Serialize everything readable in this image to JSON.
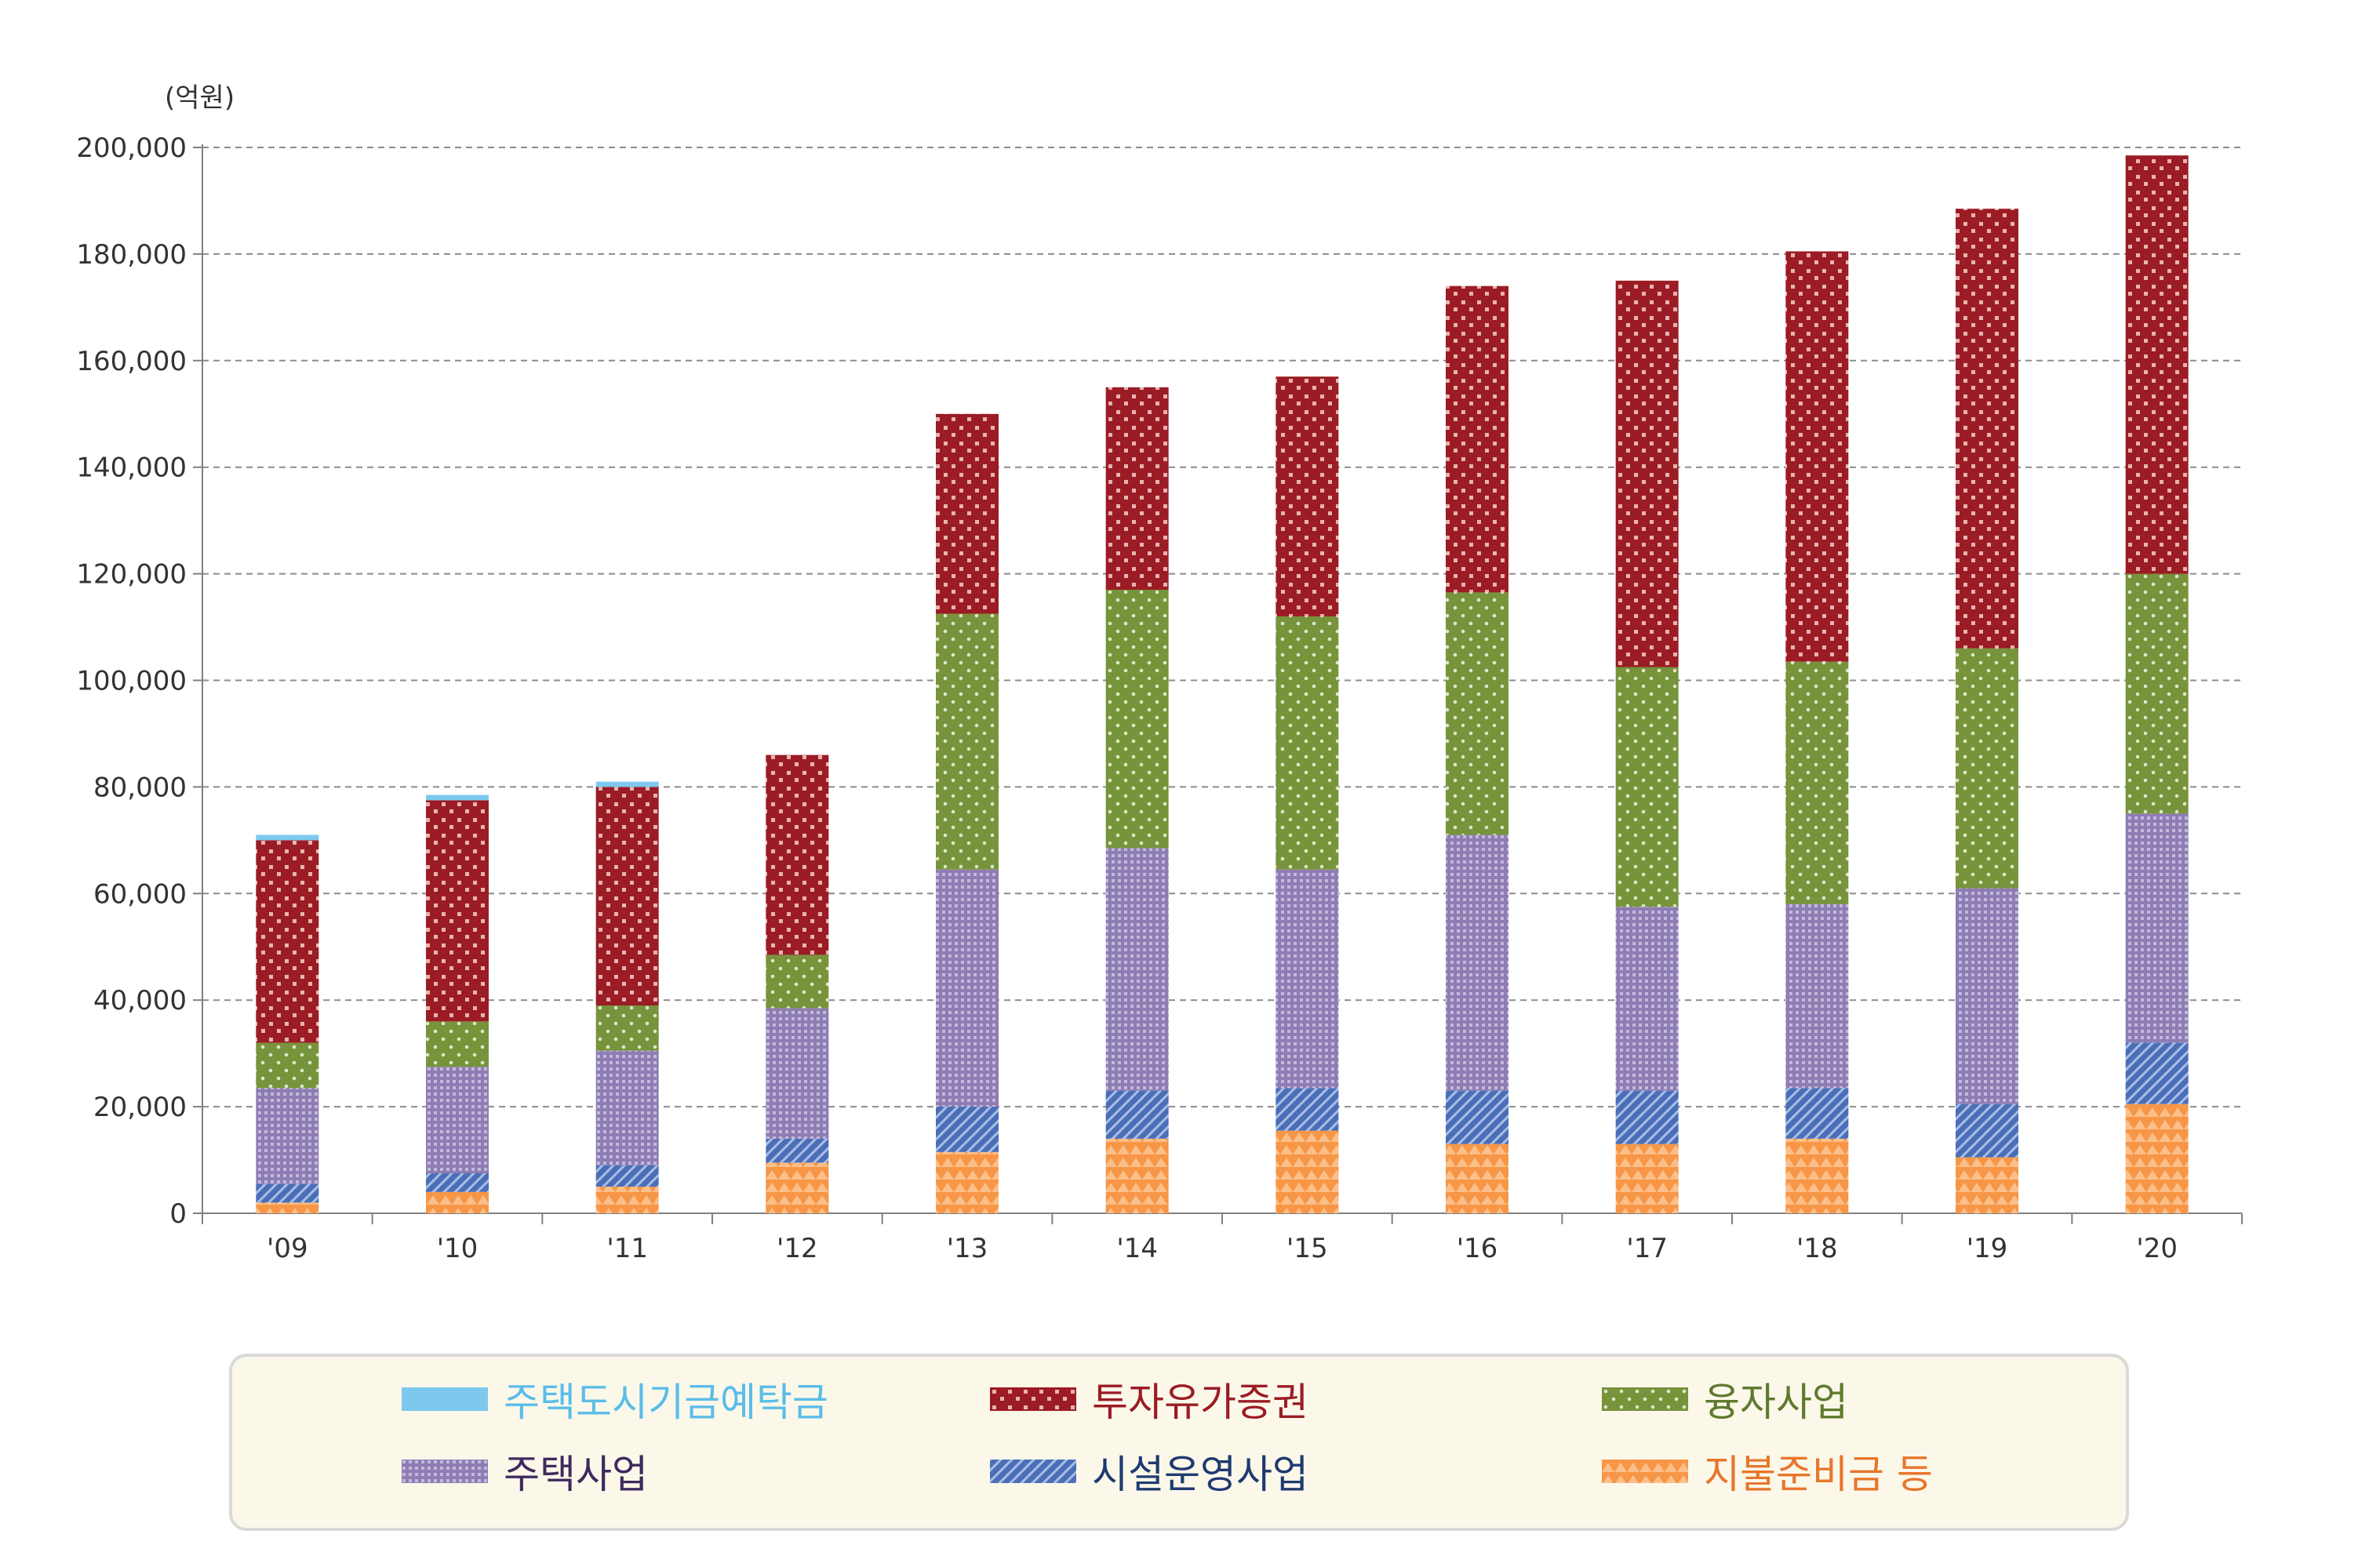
{
  "chart_data": {
    "type": "bar",
    "stacked": true,
    "unit_label": "(억원)",
    "categories": [
      "'09",
      "'10",
      "'11",
      "'12",
      "'13",
      "'14",
      "'15",
      "'16",
      "'17",
      "'18",
      "'19",
      "'20"
    ],
    "ylim": [
      0,
      200000
    ],
    "yticks": [
      "0",
      "20,000",
      "40,000",
      "60,000",
      "80,000",
      "100,000",
      "120,000",
      "140,000",
      "160,000",
      "180,000",
      "200,000"
    ],
    "grid": "horizontal dashed",
    "legend_position": "bottom",
    "series": [
      {
        "name": "지불준비금 등",
        "color": "#f79646",
        "values": [
          2000,
          4000,
          5000,
          9500,
          11500,
          14000,
          15500,
          13000,
          13000,
          14000,
          10500,
          20500
        ]
      },
      {
        "name": "시설운영사업",
        "color": "#4a6fb8",
        "values": [
          3500,
          3500,
          4000,
          4500,
          8500,
          9000,
          8000,
          10000,
          10000,
          9500,
          10000,
          11500
        ]
      },
      {
        "name": "주택사업",
        "color": "#9585b8",
        "values": [
          18000,
          20000,
          21500,
          24500,
          44500,
          45500,
          41000,
          48000,
          34500,
          34500,
          40500,
          43000
        ]
      },
      {
        "name": "융자사업",
        "color": "#77933c",
        "values": [
          8500,
          8500,
          8500,
          10000,
          48000,
          48500,
          47500,
          45500,
          45000,
          45500,
          45000,
          45000
        ]
      },
      {
        "name": "투자유가증권",
        "color": "#9b1c24",
        "values": [
          38000,
          41500,
          41000,
          37500,
          37500,
          38000,
          45000,
          57500,
          72500,
          77000,
          82500,
          78500
        ]
      },
      {
        "name": "주택도시기금예탁금",
        "color": "#7dc9ee",
        "values": [
          1000,
          1000,
          1000,
          0,
          0,
          0,
          0,
          0,
          0,
          0,
          0,
          0
        ]
      }
    ]
  },
  "legend": {
    "items": [
      {
        "label": "주택도시기금예탁금",
        "text_color": "#5bbde8",
        "pattern": "solid-blue"
      },
      {
        "label": "투자유가증권",
        "text_color": "#9b1c24",
        "pattern": "red-dots"
      },
      {
        "label": "융자사업",
        "text_color": "#5f7a2e",
        "pattern": "green-dots"
      },
      {
        "label": "주택사업",
        "text_color": "#3d2a5e",
        "pattern": "purple-grid"
      },
      {
        "label": "시설운영사업",
        "text_color": "#1f3a70",
        "pattern": "blue-hatch"
      },
      {
        "label": "지불준비금 등",
        "text_color": "#e8762c",
        "pattern": "orange-triangles"
      }
    ]
  }
}
